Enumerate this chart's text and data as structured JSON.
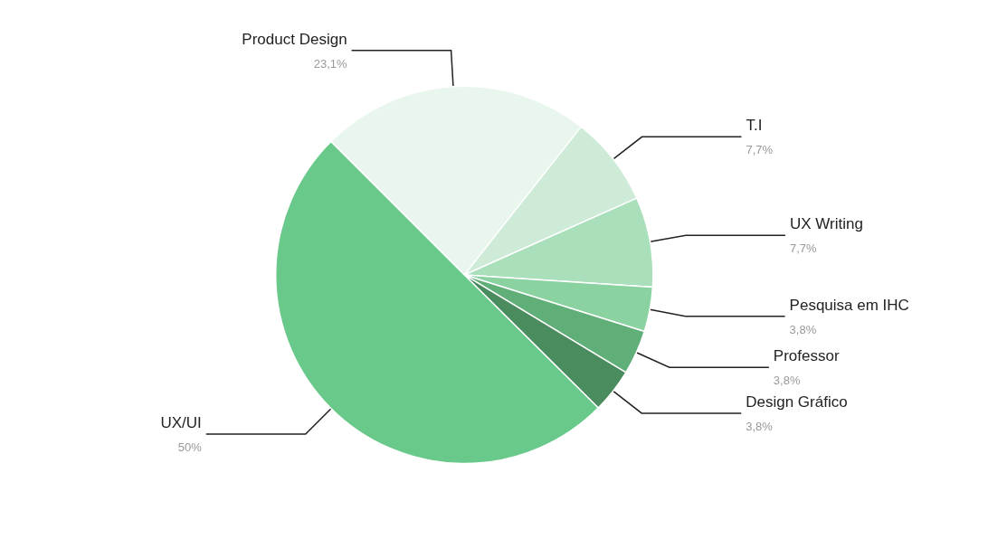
{
  "chart_data": {
    "type": "pie",
    "categories": [
      "Product Design",
      "T.I",
      "UX Writing",
      "Pesquisa em IHC",
      "Professor",
      "Design Gráfico",
      "UX/UI"
    ],
    "values": [
      23.1,
      7.7,
      7.7,
      3.8,
      3.8,
      3.8,
      50
    ],
    "value_labels": [
      "23,1%",
      "7,7%",
      "7,7%",
      "3,8%",
      "3,8%",
      "3,8%",
      "50%"
    ],
    "colors": [
      "#e9f6ed",
      "#cdebd7",
      "#a9dfba",
      "#8ad3a1",
      "#60ae78",
      "#4a8c5e",
      "#69c98a"
    ],
    "legend": false
  }
}
